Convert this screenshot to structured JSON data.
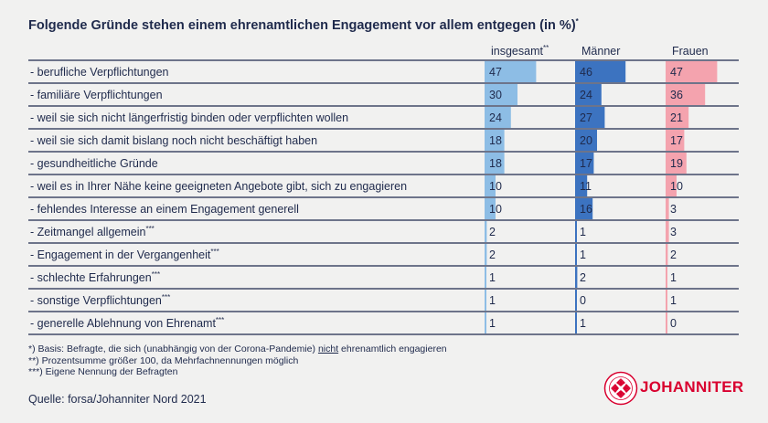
{
  "title": "Folgende Gründe stehen einem ehrenamtlichen Engagement vor allem entgegen (in %)",
  "title_mark": "*",
  "columns": [
    {
      "label": "insgesamt",
      "mark": "**",
      "color": "#8dbde5"
    },
    {
      "label": "Männer",
      "mark": "",
      "color": "#3c73c0"
    },
    {
      "label": "Frauen",
      "mark": "",
      "color": "#f4a3ae"
    }
  ],
  "chart_data": {
    "type": "bar",
    "categories": [
      "- berufliche Verpflichtungen",
      "- familiäre Verpflichtungen",
      "- weil sie sich nicht längerfristig binden oder verpflichten wollen",
      "- weil sie sich damit bislang noch nicht beschäftigt haben",
      "- gesundheitliche Gründe",
      "- weil es in Ihrer Nähe keine geeigneten Angebote gibt, sich zu engagieren",
      "- fehlendes Interesse an einem Engagement generell",
      "- Zeitmangel allgemein",
      "- Engagement in der Vergangenheit",
      "- schlechte Erfahrungen",
      "- sonstige Verpflichtungen",
      "- generelle Ablehnung von Ehrenamt"
    ],
    "category_marks": [
      "",
      "",
      "",
      "",
      "",
      "",
      "",
      "***",
      "***",
      "***",
      "***",
      "***"
    ],
    "series": [
      {
        "name": "insgesamt",
        "values": [
          47,
          30,
          24,
          18,
          18,
          10,
          10,
          2,
          2,
          1,
          1,
          1
        ]
      },
      {
        "name": "Männer",
        "values": [
          46,
          24,
          27,
          20,
          17,
          11,
          16,
          1,
          1,
          2,
          0,
          1
        ]
      },
      {
        "name": "Frauen",
        "values": [
          47,
          36,
          21,
          17,
          19,
          10,
          3,
          3,
          2,
          1,
          1,
          0
        ]
      }
    ],
    "orientation": "horizontal",
    "grid": false
  },
  "footnotes": {
    "line1_prefix": "*) Basis: Befragte, die sich (unabhängig von der Corona-Pandemie) ",
    "line1_underlined": "nicht",
    "line1_suffix": " ehrenamtlich engagieren",
    "line2": "**) Prozentsumme größer 100, da Mehrfachnennungen möglich",
    "line3": "***) Eigene Nennung der Befragten"
  },
  "source": "Quelle: forsa/Johanniter Nord 2021",
  "logo": {
    "text": "JOHANNITER",
    "icon": "johanniter-cross-seal-icon",
    "ring_text": "JOHANNITER-UNFALL-HILFE",
    "color": "#d9002f"
  }
}
